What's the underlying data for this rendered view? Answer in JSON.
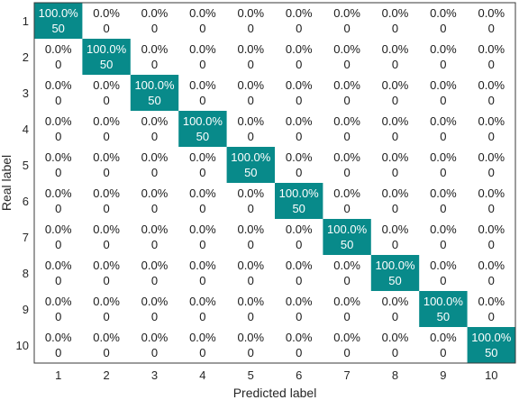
{
  "chart_data": {
    "type": "heatmap",
    "title": "",
    "xlabel": "Predicted label",
    "ylabel": "Real label",
    "x_ticks": [
      "1",
      "2",
      "3",
      "4",
      "5",
      "6",
      "7",
      "8",
      "9",
      "10"
    ],
    "y_ticks": [
      "1",
      "2",
      "3",
      "4",
      "5",
      "6",
      "7",
      "8",
      "9",
      "10"
    ],
    "counts": [
      [
        50,
        0,
        0,
        0,
        0,
        0,
        0,
        0,
        0,
        0
      ],
      [
        0,
        50,
        0,
        0,
        0,
        0,
        0,
        0,
        0,
        0
      ],
      [
        0,
        0,
        50,
        0,
        0,
        0,
        0,
        0,
        0,
        0
      ],
      [
        0,
        0,
        0,
        50,
        0,
        0,
        0,
        0,
        0,
        0
      ],
      [
        0,
        0,
        0,
        0,
        50,
        0,
        0,
        0,
        0,
        0
      ],
      [
        0,
        0,
        0,
        0,
        0,
        50,
        0,
        0,
        0,
        0
      ],
      [
        0,
        0,
        0,
        0,
        0,
        0,
        50,
        0,
        0,
        0
      ],
      [
        0,
        0,
        0,
        0,
        0,
        0,
        0,
        50,
        0,
        0
      ],
      [
        0,
        0,
        0,
        0,
        0,
        0,
        0,
        0,
        50,
        0
      ],
      [
        0,
        0,
        0,
        0,
        0,
        0,
        0,
        0,
        0,
        50
      ]
    ],
    "percents": [
      [
        "100.0%",
        "0.0%",
        "0.0%",
        "0.0%",
        "0.0%",
        "0.0%",
        "0.0%",
        "0.0%",
        "0.0%",
        "0.0%"
      ],
      [
        "0.0%",
        "100.0%",
        "0.0%",
        "0.0%",
        "0.0%",
        "0.0%",
        "0.0%",
        "0.0%",
        "0.0%",
        "0.0%"
      ],
      [
        "0.0%",
        "0.0%",
        "100.0%",
        "0.0%",
        "0.0%",
        "0.0%",
        "0.0%",
        "0.0%",
        "0.0%",
        "0.0%"
      ],
      [
        "0.0%",
        "0.0%",
        "0.0%",
        "100.0%",
        "0.0%",
        "0.0%",
        "0.0%",
        "0.0%",
        "0.0%",
        "0.0%"
      ],
      [
        "0.0%",
        "0.0%",
        "0.0%",
        "0.0%",
        "100.0%",
        "0.0%",
        "0.0%",
        "0.0%",
        "0.0%",
        "0.0%"
      ],
      [
        "0.0%",
        "0.0%",
        "0.0%",
        "0.0%",
        "0.0%",
        "100.0%",
        "0.0%",
        "0.0%",
        "0.0%",
        "0.0%"
      ],
      [
        "0.0%",
        "0.0%",
        "0.0%",
        "0.0%",
        "0.0%",
        "0.0%",
        "100.0%",
        "0.0%",
        "0.0%",
        "0.0%"
      ],
      [
        "0.0%",
        "0.0%",
        "0.0%",
        "0.0%",
        "0.0%",
        "0.0%",
        "0.0%",
        "100.0%",
        "0.0%",
        "0.0%"
      ],
      [
        "0.0%",
        "0.0%",
        "0.0%",
        "0.0%",
        "0.0%",
        "0.0%",
        "0.0%",
        "0.0%",
        "100.0%",
        "0.0%"
      ],
      [
        "0.0%",
        "0.0%",
        "0.0%",
        "0.0%",
        "0.0%",
        "0.0%",
        "0.0%",
        "0.0%",
        "0.0%",
        "100.0%"
      ]
    ],
    "grid": false,
    "colors": {
      "highlight": "#088A8A",
      "highlight_text": "#ffffff",
      "cell_text": "#1a1a1a",
      "axis": "#3a3a3a"
    }
  }
}
